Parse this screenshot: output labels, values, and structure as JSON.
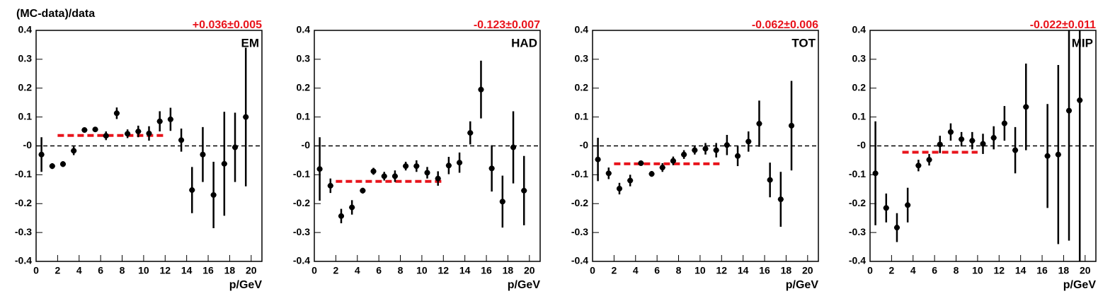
{
  "chart_data": [
    {
      "type": "scatter",
      "ylabel": "(MC-data)/data",
      "xlabel": "p/GeV",
      "label": "EM",
      "x": [
        0.5,
        1.5,
        2.5,
        3.5,
        4.5,
        5.5,
        6.5,
        7.5,
        8.5,
        9.5,
        10.5,
        11.5,
        12.5,
        13.5,
        14.5,
        15.5,
        16.5,
        17.5,
        18.5,
        19.5
      ],
      "values": [
        -0.03,
        -0.07,
        -0.063,
        -0.017,
        0.055,
        0.057,
        0.035,
        0.113,
        0.042,
        0.05,
        0.043,
        0.085,
        0.092,
        0.02,
        -0.153,
        -0.03,
        -0.17,
        -0.062,
        -0.005,
        0.1
      ],
      "errors": [
        0.06,
        0.01,
        0.01,
        0.015,
        0.005,
        0.005,
        0.015,
        0.02,
        0.015,
        0.02,
        0.025,
        0.035,
        0.04,
        0.04,
        0.08,
        0.095,
        0.115,
        0.18,
        0.12,
        0.24
      ],
      "fit": {
        "value": 0.036,
        "error": 0.005,
        "xrange": [
          2,
          12
        ],
        "label": "+0.036±0.005",
        "color": "#e8141c"
      },
      "color": "#000000",
      "xlim": [
        0,
        21
      ],
      "xticks": [
        0,
        2,
        4,
        6,
        8,
        10,
        12,
        14,
        16,
        18,
        20
      ],
      "ylim": [
        -0.4,
        0.4
      ],
      "yticks": [
        -0.4,
        -0.3,
        -0.2,
        -0.1,
        {
          "value": 0,
          "label": "-0"
        },
        0.1,
        0.2,
        0.3,
        0.4
      ]
    },
    {
      "type": "scatter",
      "xlabel": "p/GeV",
      "label": "HAD",
      "x": [
        0.5,
        1.5,
        2.5,
        3.5,
        4.5,
        5.5,
        6.5,
        7.5,
        8.5,
        9.5,
        10.5,
        11.5,
        12.5,
        13.5,
        14.5,
        15.5,
        16.5,
        17.5,
        18.5,
        19.5
      ],
      "values": [
        -0.08,
        -0.138,
        -0.243,
        -0.213,
        -0.155,
        -0.088,
        -0.105,
        -0.105,
        -0.07,
        -0.07,
        -0.093,
        -0.113,
        -0.068,
        -0.058,
        0.045,
        0.195,
        -0.078,
        -0.193,
        -0.005,
        -0.155
      ],
      "errors": [
        0.11,
        0.025,
        0.025,
        0.025,
        0.01,
        0.012,
        0.015,
        0.02,
        0.015,
        0.02,
        0.02,
        0.025,
        0.03,
        0.035,
        0.04,
        0.1,
        0.08,
        0.09,
        0.125,
        0.12
      ],
      "fit": {
        "value": -0.123,
        "error": 0.007,
        "xrange": [
          2,
          12
        ],
        "label": "-0.123±0.007",
        "color": "#e8141c"
      },
      "color": "#000000",
      "xlim": [
        0,
        21
      ],
      "xticks": [
        0,
        2,
        4,
        6,
        8,
        10,
        12,
        14,
        16,
        18,
        20
      ],
      "ylim": [
        -0.4,
        0.4
      ],
      "yticks": [
        -0.4,
        -0.3,
        -0.2,
        -0.1,
        {
          "value": 0,
          "label": "-0"
        },
        0.1,
        0.2,
        0.3,
        0.4
      ]
    },
    {
      "type": "scatter",
      "xlabel": "p/GeV",
      "label": "TOT",
      "x": [
        0.5,
        1.5,
        2.5,
        3.5,
        4.5,
        5.5,
        6.5,
        7.5,
        8.5,
        9.5,
        10.5,
        11.5,
        12.5,
        13.5,
        14.5,
        15.5,
        16.5,
        17.5,
        18.5
      ],
      "values": [
        -0.047,
        -0.095,
        -0.148,
        -0.12,
        -0.06,
        -0.097,
        -0.075,
        -0.052,
        -0.03,
        -0.015,
        -0.01,
        -0.015,
        0.003,
        -0.035,
        0.015,
        0.077,
        -0.118,
        -0.185,
        0.07
      ],
      "errors": [
        0.075,
        0.02,
        0.02,
        0.02,
        0.005,
        0.01,
        0.015,
        0.015,
        0.015,
        0.015,
        0.02,
        0.025,
        0.035,
        0.035,
        0.035,
        0.08,
        0.06,
        0.095,
        0.155
      ],
      "fit": {
        "value": -0.062,
        "error": 0.006,
        "xrange": [
          2,
          12
        ],
        "label": "-0.062±0.006",
        "color": "#e8141c"
      },
      "color": "#000000",
      "xlim": [
        0,
        21
      ],
      "xticks": [
        0,
        2,
        4,
        6,
        8,
        10,
        12,
        14,
        16,
        18,
        20
      ],
      "ylim": [
        -0.4,
        0.4
      ],
      "yticks": [
        -0.4,
        -0.3,
        -0.2,
        -0.1,
        {
          "value": 0,
          "label": "-0"
        },
        0.1,
        0.2,
        0.3,
        0.4
      ]
    },
    {
      "type": "scatter",
      "xlabel": "p/GeV",
      "label": "MIP",
      "x": [
        0.5,
        1.5,
        2.5,
        3.5,
        4.5,
        5.5,
        6.5,
        7.5,
        8.5,
        9.5,
        10.5,
        11.5,
        12.5,
        13.5,
        14.5,
        16.5,
        17.5,
        18.5,
        19.5
      ],
      "values": [
        -0.095,
        -0.215,
        -0.283,
        -0.205,
        -0.068,
        -0.048,
        0.005,
        0.048,
        0.023,
        0.018,
        0.007,
        0.028,
        0.078,
        -0.015,
        0.135,
        -0.035,
        -0.03,
        0.122,
        0.158
      ],
      "errors": [
        0.18,
        0.05,
        0.05,
        0.06,
        0.02,
        0.02,
        0.03,
        0.03,
        0.025,
        0.03,
        0.035,
        0.04,
        0.06,
        0.08,
        0.15,
        0.18,
        0.31,
        0.45,
        0.6
      ],
      "fit": {
        "value": -0.022,
        "error": 0.011,
        "xrange": [
          3,
          10
        ],
        "label": "-0.022±0.011",
        "color": "#e8141c"
      },
      "color": "#000000",
      "xlim": [
        0,
        21
      ],
      "xticks": [
        0,
        2,
        4,
        6,
        8,
        10,
        12,
        14,
        16,
        18,
        20
      ],
      "ylim": [
        -0.4,
        0.4
      ],
      "yticks": [
        -0.4,
        -0.3,
        -0.2,
        -0.1,
        {
          "value": 0,
          "label": "-0"
        },
        0.1,
        0.2,
        0.3,
        0.4
      ]
    }
  ]
}
